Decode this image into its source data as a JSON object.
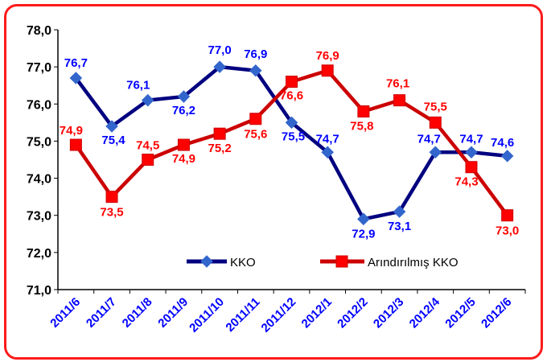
{
  "chart_data": {
    "type": "line",
    "title": "",
    "xlabel": "",
    "ylabel": "",
    "categories": [
      "2011/6",
      "2011/7",
      "2011/8",
      "2011/9",
      "2011/10",
      "2011/11",
      "2011/12",
      "2012/1",
      "2012/2",
      "2012/3",
      "2012/4",
      "2012/5",
      "2012/6"
    ],
    "ylim": [
      71.0,
      78.0
    ],
    "yticks": [
      "71,0",
      "72,0",
      "73,0",
      "74,0",
      "75,0",
      "76,0",
      "77,0",
      "78,0"
    ],
    "grid": false,
    "legend_position": "bottom-right inside plot",
    "series": [
      {
        "name": "KKO",
        "color": "#000080",
        "marker": "diamond",
        "marker_color": "#3366cc",
        "label_color": "#0000ff",
        "values": [
          76.7,
          75.4,
          76.1,
          76.2,
          77.0,
          76.9,
          75.5,
          74.7,
          72.9,
          73.1,
          74.7,
          74.7,
          74.6
        ],
        "labels": [
          "76,7",
          "75,4",
          "76,1",
          "76,2",
          "77,0",
          "76,9",
          "75,5",
          "74,7",
          "72,9",
          "73,1",
          "74,7",
          "74,7",
          "74,6"
        ]
      },
      {
        "name": "Arındırılmış KKO",
        "color": "#cc0000",
        "marker": "square",
        "marker_color": "#ff0000",
        "label_color": "#ff0000",
        "values": [
          74.9,
          73.5,
          74.5,
          74.9,
          75.2,
          75.6,
          76.6,
          76.9,
          75.8,
          76.1,
          75.5,
          74.3,
          73.0
        ],
        "labels": [
          "74,9",
          "73,5",
          "74,5",
          "74,9",
          "75,2",
          "75,6",
          "76,6",
          "76,9",
          "75,8",
          "76,1",
          "75,5",
          "74,3",
          "73,0"
        ]
      }
    ]
  }
}
